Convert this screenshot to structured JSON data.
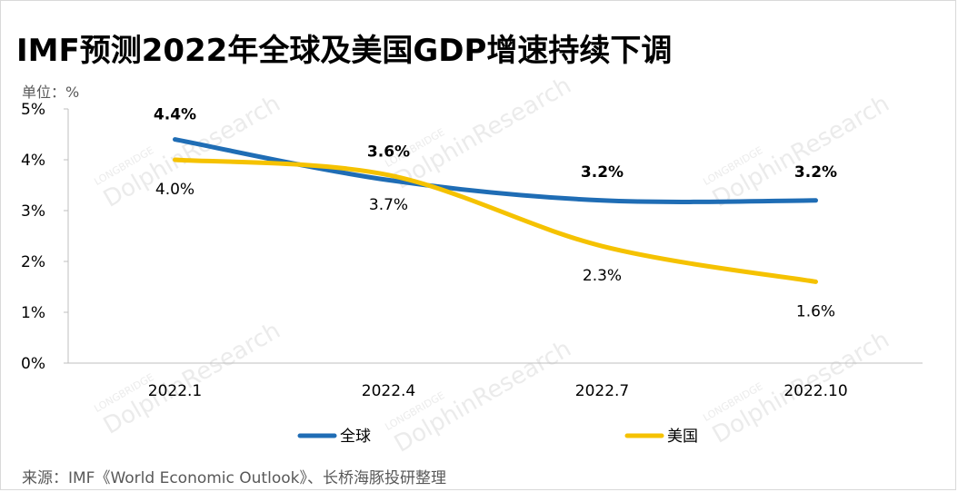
{
  "title": "IMF预测2022年全球及美国GDP增速持续下调",
  "unit_label": "单位：%",
  "source": "来源：IMF《World Economic Outlook》、长桥海豚投研整理",
  "watermark": [
    "LONGBRIDGE",
    "DolphinResearch"
  ],
  "chart_data": {
    "type": "line",
    "title": "IMF预测2022年全球及美国GDP增速持续下调",
    "categories": [
      "2022.1",
      "2022.4",
      "2022.7",
      "2022.10"
    ],
    "ylim": [
      0,
      5
    ],
    "yticks": [
      "0%",
      "1%",
      "2%",
      "3%",
      "4%",
      "5%"
    ],
    "ylabel": "单位：%",
    "grid": false,
    "legend": "bottom",
    "series": [
      {
        "name": "全球",
        "values": [
          4.4,
          3.6,
          3.2,
          3.2
        ],
        "labels": [
          "4.4%",
          "3.6%",
          "3.2%",
          "3.2%"
        ],
        "color": "#1f6db5"
      },
      {
        "name": "美国",
        "values": [
          4.0,
          3.7,
          2.3,
          1.6
        ],
        "labels": [
          "4.0%",
          "3.7%",
          "2.3%",
          "1.6%"
        ],
        "color": "#f5c200"
      }
    ]
  }
}
